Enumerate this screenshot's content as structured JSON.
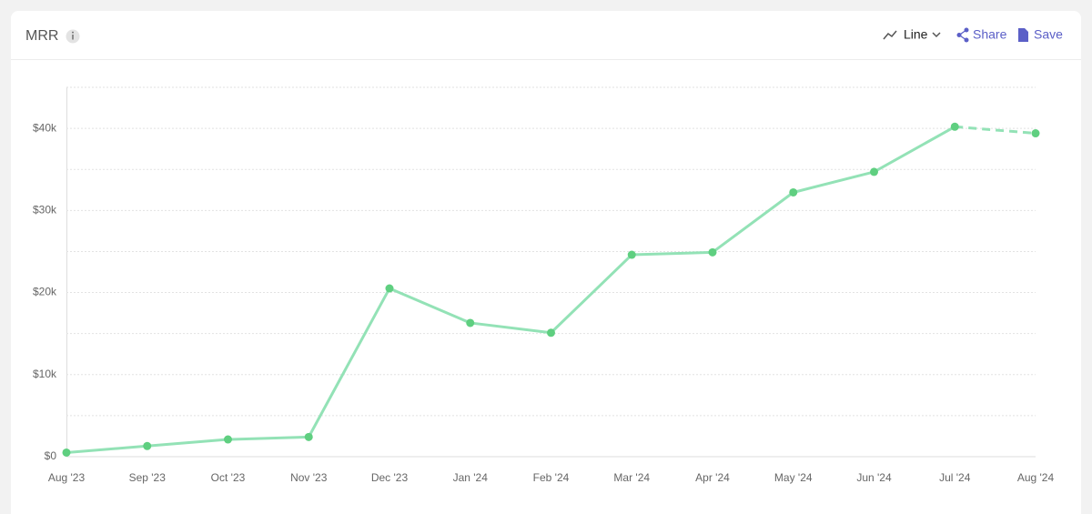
{
  "chart_data": {
    "type": "line",
    "title": "MRR",
    "categories": [
      "Aug '23",
      "Sep '23",
      "Oct '23",
      "Nov '23",
      "Dec '23",
      "Jan '24",
      "Feb '24",
      "Mar '24",
      "Apr '24",
      "May '24",
      "Jun '24",
      "Jul '24",
      "Aug '24"
    ],
    "series": [
      {
        "name": "MRR",
        "color": "#93e2b6",
        "point_color": "#5fcf80",
        "values": [
          500,
          1300,
          2100,
          2400,
          20500,
          16300,
          15100,
          24600,
          24900,
          32200,
          34700,
          40200,
          39400
        ]
      }
    ],
    "dashed_last_segment": true,
    "ylim": [
      0,
      45000
    ],
    "yticks": [
      {
        "value": 0,
        "label": "$0"
      },
      {
        "value": 10000,
        "label": "$10k"
      },
      {
        "value": 20000,
        "label": "$20k"
      },
      {
        "value": 30000,
        "label": "$30k"
      },
      {
        "value": 40000,
        "label": "$40k"
      }
    ],
    "yminorticks": [
      5000,
      15000,
      25000,
      35000,
      45000
    ],
    "grid": true
  },
  "toolbar": {
    "chart_type": "Line",
    "share": "Share",
    "save": "Save"
  }
}
